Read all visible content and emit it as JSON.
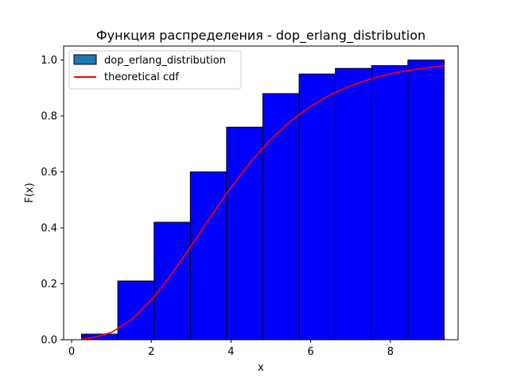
{
  "chart_data": {
    "type": "bar",
    "title": "Функция распределения - dop_erlang_distribution",
    "xlabel": "x",
    "ylabel": "F(x)",
    "xlim": [
      -0.2,
      9.7
    ],
    "ylim": [
      0.0,
      1.05
    ],
    "xticks": [
      0,
      2,
      4,
      6,
      8
    ],
    "yticks": [
      0.0,
      0.2,
      0.4,
      0.6,
      0.8,
      1.0
    ],
    "xtick_labels": [
      "0",
      "2",
      "4",
      "6",
      "8"
    ],
    "ytick_labels": [
      "0.0",
      "0.2",
      "0.4",
      "0.6",
      "0.8",
      "1.0"
    ],
    "grid": false,
    "legend_placement": "upper-left",
    "series": [
      {
        "name": "dop_erlang_distribution",
        "kind": "histogram-step",
        "color": "#0000ff",
        "edge_color": "#000000",
        "legend_color": "#1f77b4",
        "bin_edges": [
          0.25,
          1.16,
          2.07,
          2.98,
          3.89,
          4.8,
          5.71,
          6.62,
          7.53,
          8.44,
          9.35
        ],
        "values": [
          0.02,
          0.21,
          0.42,
          0.6,
          0.76,
          0.88,
          0.95,
          0.97,
          0.98,
          1.0
        ]
      },
      {
        "name": "theoretical cdf",
        "kind": "line",
        "color": "#ff0000",
        "x": [
          0.25,
          0.5,
          1.0,
          1.5,
          2.0,
          2.5,
          3.0,
          3.5,
          4.0,
          4.5,
          5.0,
          5.5,
          6.0,
          6.5,
          7.0,
          7.5,
          8.0,
          8.5,
          9.0,
          9.35
        ],
        "y": [
          0.002,
          0.006,
          0.026,
          0.071,
          0.142,
          0.232,
          0.335,
          0.442,
          0.545,
          0.637,
          0.716,
          0.782,
          0.835,
          0.876,
          0.908,
          0.932,
          0.951,
          0.964,
          0.974,
          0.98
        ]
      }
    ]
  }
}
